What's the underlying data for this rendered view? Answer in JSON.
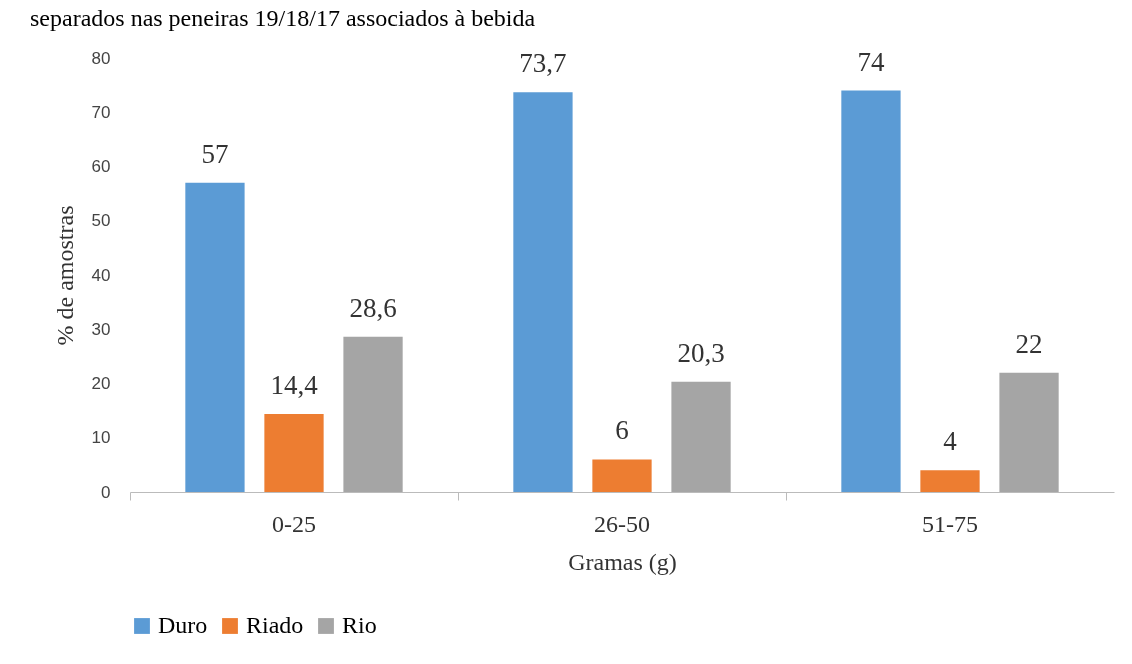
{
  "chart_data": {
    "type": "bar",
    "title": "separados nas peneiras 19/18/17 associados à bebida",
    "xlabel": "Gramas (g)",
    "ylabel": "% de amostras",
    "categories": [
      "0-25",
      "26-50",
      "51-75"
    ],
    "series": [
      {
        "name": "Duro",
        "color": "#5b9bd5",
        "values": [
          57,
          73.7,
          74
        ],
        "value_labels": [
          "57",
          "73,7",
          "74"
        ]
      },
      {
        "name": "Riado",
        "color": "#ed7d31",
        "values": [
          14.4,
          6,
          4
        ],
        "value_labels": [
          "14,4",
          "6",
          "4"
        ]
      },
      {
        "name": "Rio",
        "color": "#a5a5a5",
        "values": [
          28.6,
          20.3,
          22
        ],
        "value_labels": [
          "28,6",
          "20,3",
          "22"
        ]
      }
    ],
    "ylim": [
      0,
      80
    ],
    "yticks": [
      0,
      10,
      20,
      30,
      40,
      50,
      60,
      70,
      80
    ],
    "grid": false,
    "legend": "bottom"
  }
}
